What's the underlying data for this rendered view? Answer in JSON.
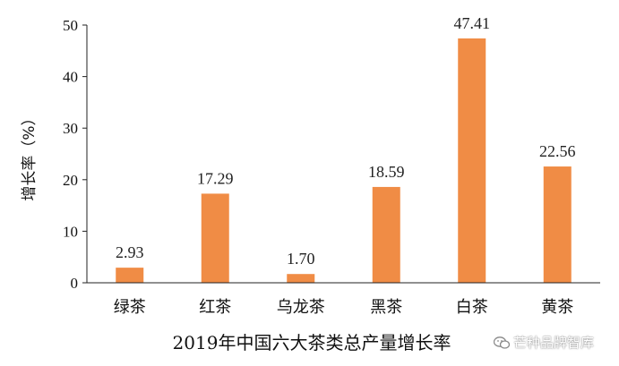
{
  "chart_data": {
    "type": "bar",
    "title": "2019年中国六大茶类总产量增长率",
    "ylabel": "增长率（%）",
    "xlabel": "",
    "categories": [
      "绿茶",
      "红茶",
      "乌龙茶",
      "黑茶",
      "白茶",
      "黄茶"
    ],
    "values": [
      2.93,
      17.29,
      1.7,
      18.59,
      47.41,
      22.56
    ],
    "value_labels": [
      "2.93",
      "17.29",
      "1.70",
      "18.59",
      "47.41",
      "22.56"
    ],
    "ylim": [
      0,
      50
    ],
    "yticks": [
      "0",
      "10",
      "20",
      "30",
      "40",
      "50"
    ],
    "grid": false,
    "bar_color": "#F08C45"
  },
  "watermark": {
    "text": "芒种品牌智库",
    "icon": "wechat-icon"
  }
}
